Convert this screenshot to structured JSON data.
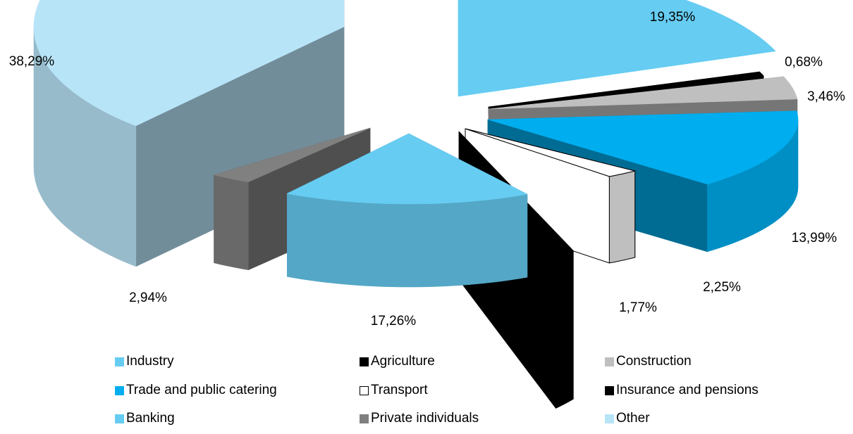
{
  "chart_data": {
    "type": "pie",
    "style": "3d-exploded",
    "slices": [
      {
        "label": "Industry",
        "value": 19.35,
        "display": "19,35%",
        "color": "#66ccf2"
      },
      {
        "label": "Agriculture",
        "value": 0.68,
        "display": "0,68%",
        "color": "#000000"
      },
      {
        "label": "Construction",
        "value": 3.46,
        "display": "3,46%",
        "color": "#bfbfbf"
      },
      {
        "label": "Trade and public catering",
        "value": 13.99,
        "display": "13,99%",
        "color": "#00aeef"
      },
      {
        "label": "Transport",
        "value": 2.25,
        "display": "2,25%",
        "color": "#ffffff"
      },
      {
        "label": "Insurance and pensions",
        "value": 1.77,
        "display": "1,77%",
        "color": "#000000"
      },
      {
        "label": "Banking",
        "value": 17.26,
        "display": "17,26%",
        "color": "#66ccf2"
      },
      {
        "label": "Private individuals",
        "value": 2.94,
        "display": "2,94%",
        "color": "#808080"
      },
      {
        "label": "Other",
        "value": 38.29,
        "display": "38,29%",
        "color": "#b8e4f8"
      }
    ],
    "legend": {
      "placement": "bottom",
      "columns": 3,
      "entries": [
        "Industry",
        "Agriculture",
        "Construction",
        "Trade and public catering",
        "Transport",
        "Insurance and pensions",
        "Banking",
        "Private individuals",
        "Other"
      ]
    }
  }
}
